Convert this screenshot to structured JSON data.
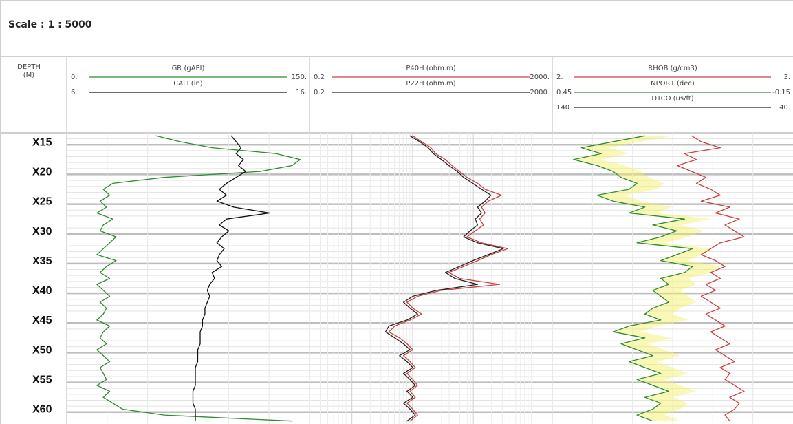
{
  "scale_label": "Scale : 1 : 5000",
  "depth_header": {
    "line1": "DEPTH",
    "line2": "(M)"
  },
  "tracks": [
    {
      "curves": [
        {
          "name": "GR (gAPI)",
          "min": "0.",
          "max": "150.",
          "color": "#2e8b2e"
        },
        {
          "name": "CALI (in)",
          "min": "6.",
          "max": "16.",
          "color": "#111111"
        }
      ]
    },
    {
      "curves": [
        {
          "name": "P40H (ohm.m)",
          "min": "0.2",
          "max": "2000.",
          "color": "#c94040"
        },
        {
          "name": "P22H (ohm.m)",
          "min": "0.2",
          "max": "2000.",
          "color": "#222222"
        }
      ]
    },
    {
      "curves": [
        {
          "name": "RHOB (g/cm3)",
          "min": "2.",
          "max": "3.",
          "color": "#c94040"
        },
        {
          "name": "NPOR1 (dec)",
          "min": "0.45",
          "max": "-0.15",
          "color": "#2e8b2e"
        },
        {
          "name": "DTCO (us/ft)",
          "min": "140.",
          "max": "40.",
          "color": "#222222"
        }
      ]
    }
  ],
  "chart_data": {
    "type": "line",
    "title": "",
    "depth_ticks": [
      "X15",
      "X20",
      "X25",
      "X30",
      "X35",
      "X40",
      "X45",
      "X50",
      "X55",
      "X60"
    ],
    "depth_tick_values": [
      15,
      20,
      25,
      30,
      35,
      40,
      45,
      50,
      55,
      60
    ],
    "depth_range": [
      13,
      62
    ],
    "series": [
      {
        "name": "GR (gAPI)",
        "track": 0,
        "scale": [
          0,
          150
        ],
        "log": false,
        "color": "#2e8b2e",
        "depth": [
          13.5,
          14.5,
          15.5,
          16.5,
          17.5,
          18.5,
          19.5,
          20.5,
          21.5,
          22.5,
          23.5,
          24.5,
          25.5,
          26.5,
          27.5,
          28.5,
          29.5,
          30.5,
          31.5,
          32.5,
          33.5,
          34.5,
          35.5,
          36.5,
          37.5,
          38.5,
          39.5,
          40.5,
          41.5,
          42.5,
          43.5,
          44.5,
          45.5,
          46.5,
          47.5,
          48.5,
          49.5,
          50.5,
          51.5,
          52.5,
          53.5,
          54.5,
          55.5,
          56.5,
          57.5,
          58.5,
          59.5,
          60.5,
          61.5
        ],
        "values": [
          55,
          70,
          90,
          130,
          145,
          140,
          120,
          60,
          28,
          22,
          26,
          20,
          24,
          18,
          28,
          22,
          20,
          30,
          26,
          22,
          18,
          30,
          24,
          20,
          26,
          18,
          22,
          26,
          20,
          24,
          22,
          18,
          26,
          22,
          20,
          24,
          18,
          22,
          26,
          20,
          22,
          24,
          18,
          26,
          22,
          28,
          34,
          60,
          140
        ]
      },
      {
        "name": "CALI (in)",
        "track": 0,
        "scale": [
          6,
          16
        ],
        "log": false,
        "color": "#111111",
        "depth": [
          13.5,
          14.5,
          15.5,
          16.5,
          17.5,
          18.5,
          19.5,
          20.5,
          21.5,
          22.5,
          23.5,
          24.5,
          25.5,
          26.5,
          27.5,
          28.5,
          29.5,
          30.5,
          31.5,
          32.5,
          33.5,
          34.5,
          35.5,
          36.5,
          37.5,
          38.5,
          39.5,
          40.5,
          41.5,
          42.5,
          43.5,
          44.5,
          45.5,
          46.5,
          47.5,
          48.5,
          49.5,
          50.5,
          51.5,
          52.5,
          53.5,
          54.5,
          55.5,
          56.5,
          57.5,
          58.5,
          59.5,
          60.5,
          61.5
        ],
        "values": [
          12.8,
          13.0,
          13.2,
          13.0,
          13.3,
          13.1,
          13.4,
          13.0,
          12.6,
          12.3,
          12.6,
          12.2,
          12.9,
          14.4,
          12.6,
          12.3,
          12.7,
          12.4,
          12.2,
          12.5,
          12.3,
          12.2,
          12.4,
          12.0,
          12.1,
          11.9,
          11.8,
          11.9,
          11.8,
          11.7,
          11.7,
          11.6,
          11.6,
          11.5,
          11.5,
          11.5,
          11.4,
          11.4,
          11.4,
          11.3,
          11.3,
          11.3,
          11.3,
          11.2,
          11.2,
          11.2,
          11.3,
          11.3,
          11.3
        ]
      },
      {
        "name": "P40H (ohm.m)",
        "track": 1,
        "scale": [
          0.2,
          2000
        ],
        "log": true,
        "color": "#c94040",
        "depth": [
          13.5,
          14.5,
          15.5,
          16.5,
          17.5,
          18.5,
          19.5,
          20.5,
          21.5,
          22.5,
          23.5,
          24.5,
          25.5,
          26.5,
          27.5,
          28.5,
          29.5,
          30.5,
          31.5,
          32.5,
          33.5,
          34.5,
          35.5,
          36.5,
          37.5,
          38.5,
          39.5,
          40.5,
          41.5,
          42.5,
          43.5,
          44.5,
          45.5,
          46.5,
          47.5,
          48.5,
          49.5,
          50.5,
          51.5,
          52.5,
          53.5,
          54.5,
          55.5,
          56.5,
          57.5,
          58.5,
          59.5,
          60.5,
          61.5
        ],
        "values": [
          10,
          14,
          20,
          24,
          35,
          45,
          60,
          80,
          120,
          160,
          300,
          180,
          140,
          160,
          130,
          150,
          110,
          80,
          140,
          380,
          200,
          120,
          70,
          40,
          60,
          280,
          30,
          12,
          8,
          10,
          14,
          9,
          5,
          4,
          6,
          8,
          10,
          7,
          9,
          11,
          8,
          10,
          12,
          9,
          11,
          8,
          10,
          12,
          9
        ]
      },
      {
        "name": "P22H (ohm.m)",
        "track": 1,
        "scale": [
          0.2,
          2000
        ],
        "log": true,
        "color": "#222222",
        "depth": [
          13.5,
          14.5,
          15.5,
          16.5,
          17.5,
          18.5,
          19.5,
          20.5,
          21.5,
          22.5,
          23.5,
          24.5,
          25.5,
          26.5,
          27.5,
          28.5,
          29.5,
          30.5,
          31.5,
          32.5,
          33.5,
          34.5,
          35.5,
          36.5,
          37.5,
          38.5,
          39.5,
          40.5,
          41.5,
          42.5,
          43.5,
          44.5,
          45.5,
          46.5,
          47.5,
          48.5,
          49.5,
          50.5,
          51.5,
          52.5,
          53.5,
          54.5,
          55.5,
          56.5,
          57.5,
          58.5,
          59.5,
          60.5,
          61.5
        ],
        "values": [
          9,
          13,
          18,
          22,
          30,
          40,
          55,
          70,
          100,
          140,
          200,
          160,
          120,
          140,
          110,
          120,
          90,
          70,
          120,
          320,
          180,
          100,
          60,
          35,
          50,
          120,
          25,
          10,
          7,
          9,
          12,
          8,
          4,
          3.5,
          5,
          7,
          9,
          6,
          8,
          10,
          7,
          9,
          11,
          8,
          10,
          7,
          9,
          11,
          8
        ]
      },
      {
        "name": "RHOB (g/cm3)",
        "track": 2,
        "scale": [
          2,
          3
        ],
        "log": false,
        "color": "#c94040",
        "depth": [
          13.5,
          14.5,
          15.5,
          16.5,
          17.5,
          18.5,
          19.5,
          20.5,
          21.5,
          22.5,
          23.5,
          24.5,
          25.5,
          26.5,
          27.5,
          28.5,
          29.5,
          30.5,
          31.5,
          32.5,
          33.5,
          34.5,
          35.5,
          36.5,
          37.5,
          38.5,
          39.5,
          40.5,
          41.5,
          42.5,
          43.5,
          44.5,
          45.5,
          46.5,
          47.5,
          48.5,
          49.5,
          50.5,
          51.5,
          52.5,
          53.5,
          54.5,
          55.5,
          56.5,
          57.5,
          58.5,
          59.5,
          60.5,
          61.5
        ],
        "values": [
          2.58,
          2.62,
          2.7,
          2.55,
          2.6,
          2.52,
          2.58,
          2.64,
          2.6,
          2.66,
          2.7,
          2.62,
          2.74,
          2.68,
          2.78,
          2.72,
          2.76,
          2.8,
          2.7,
          2.66,
          2.62,
          2.68,
          2.72,
          2.66,
          2.7,
          2.64,
          2.68,
          2.62,
          2.66,
          2.7,
          2.64,
          2.68,
          2.72,
          2.66,
          2.7,
          2.74,
          2.68,
          2.72,
          2.76,
          2.7,
          2.74,
          2.72,
          2.76,
          2.8,
          2.74,
          2.78,
          2.76,
          2.72,
          2.74
        ]
      },
      {
        "name": "NPOR1 (dec)",
        "track": 2,
        "scale": [
          0.45,
          -0.15
        ],
        "log": false,
        "color": "#2e8b2e",
        "depth": [
          13.5,
          14.5,
          15.5,
          16.5,
          17.5,
          18.5,
          19.5,
          20.5,
          21.5,
          22.5,
          23.5,
          24.5,
          25.5,
          26.5,
          27.5,
          28.5,
          29.5,
          30.5,
          31.5,
          32.5,
          33.5,
          34.5,
          35.5,
          36.5,
          37.5,
          38.5,
          39.5,
          40.5,
          41.5,
          42.5,
          43.5,
          44.5,
          45.5,
          46.5,
          47.5,
          48.5,
          49.5,
          50.5,
          51.5,
          52.5,
          53.5,
          54.5,
          55.5,
          56.5,
          57.5,
          58.5,
          59.5,
          60.5,
          61.5
        ],
        "values": [
          0.22,
          0.3,
          0.38,
          0.33,
          0.4,
          0.34,
          0.3,
          0.28,
          0.24,
          0.26,
          0.34,
          0.3,
          0.22,
          0.26,
          0.12,
          0.2,
          0.14,
          0.18,
          0.24,
          0.1,
          0.14,
          0.18,
          0.1,
          0.12,
          0.18,
          0.16,
          0.2,
          0.18,
          0.16,
          0.2,
          0.22,
          0.18,
          0.26,
          0.3,
          0.22,
          0.28,
          0.24,
          0.2,
          0.26,
          0.22,
          0.18,
          0.24,
          0.2,
          0.16,
          0.22,
          0.18,
          0.2,
          0.24,
          0.2
        ]
      },
      {
        "name": "DTCO (us/ft)",
        "track": 2,
        "scale": [
          140,
          40
        ],
        "log": false,
        "color": "#222222",
        "depth": [],
        "values": []
      }
    ]
  }
}
